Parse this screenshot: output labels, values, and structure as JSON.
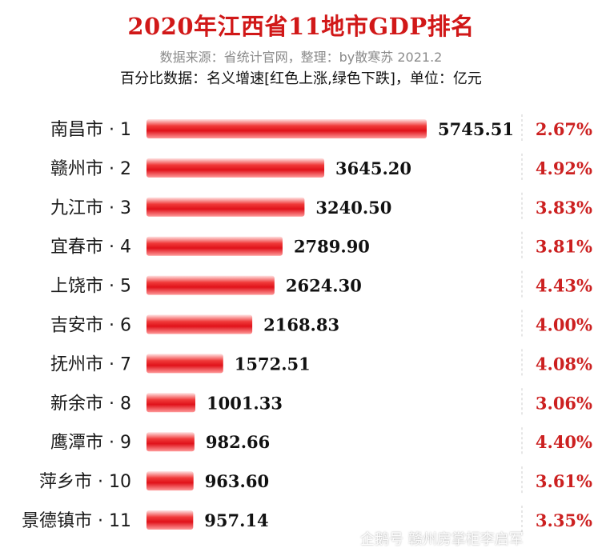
{
  "header": {
    "title": "2020年江西省11地市GDP排名",
    "source": "数据来源：省统计官网，整理：by散寒苏 2021.2",
    "subtitle": "百分比数据：名义增速[红色上涨,绿色下跌]，单位：亿元"
  },
  "watermark": "企鹅号 赣州房掌柜李启军",
  "colors": {
    "bar": "#e8141a",
    "bar_light": "#ffd0d0",
    "title": "#d11818",
    "percent": "#cc2020"
  },
  "chart_data": {
    "type": "bar",
    "orientation": "horizontal",
    "categories": [
      "南昌市 · 1",
      "赣州市 · 2",
      "九江市 · 3",
      "宜春市 · 4",
      "上饶市 · 5",
      "吉安市 · 6",
      "抚州市 · 7",
      "新余市 · 8",
      "鹰潭市 · 9",
      "萍乡市 · 10",
      "景德镇市 · 11"
    ],
    "values": [
      5745.51,
      3645.2,
      3240.5,
      2789.9,
      2624.3,
      2168.83,
      1572.51,
      1001.33,
      982.66,
      963.6,
      957.14
    ],
    "value_labels": [
      "5745.51",
      "3645.20",
      "3240.50",
      "2789.90",
      "2624.30",
      "2168.83",
      "1572.51",
      "1001.33",
      "982.66",
      "963.60",
      "957.14"
    ],
    "growth_labels": [
      "2.67%",
      "4.92%",
      "3.83%",
      "3.81%",
      "4.43%",
      "4.00%",
      "4.08%",
      "3.06%",
      "4.40%",
      "3.61%",
      "3.35%"
    ],
    "xlim": [
      0,
      5745.51
    ],
    "grid": false,
    "legend": "none"
  }
}
